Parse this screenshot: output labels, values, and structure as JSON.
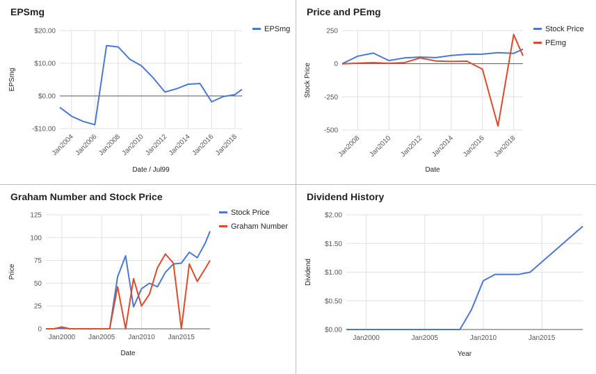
{
  "panels": [
    {
      "title": "EPSmg"
    },
    {
      "title": "Price and PEmg"
    },
    {
      "title": "Graham Number and Stock Price"
    },
    {
      "title": "Dividend History"
    }
  ],
  "colors": {
    "blue": "#4a78d0",
    "red": "#db4a2b"
  },
  "chart_data": [
    {
      "type": "line",
      "title": "EPSmg",
      "xlabel": "Date / Jul99",
      "ylabel": "EPSmg",
      "ylim": [
        -10,
        20
      ],
      "xlim": [
        2003,
        2018.6
      ],
      "yticks": [
        20,
        10,
        0,
        -10
      ],
      "ytick_labels": [
        "$20.00",
        "$10.00",
        "$0.00",
        "-$10.00"
      ],
      "xticks": [
        2004,
        2006,
        2008,
        2010,
        2012,
        2014,
        2016,
        2018
      ],
      "xtick_labels": [
        "Jan2004",
        "Jan2006",
        "Jan2008",
        "Jan2010",
        "Jan2012",
        "Jan2014",
        "Jan2016",
        "Jan2018"
      ],
      "legend_position": "top-right",
      "series": [
        {
          "name": "EPSmg",
          "color": "#4a78d0",
          "x": [
            2003,
            2004,
            2005,
            2006,
            2007,
            2008,
            2009,
            2010,
            2011,
            2012,
            2013,
            2014,
            2015,
            2016,
            2017,
            2018,
            2018.6
          ],
          "y": [
            -3.5,
            -6.2,
            -7.8,
            -8.8,
            15.4,
            15.0,
            11.2,
            9.2,
            5.5,
            1.2,
            2.2,
            3.6,
            3.8,
            -1.8,
            -0.2,
            0.4,
            2.0
          ]
        }
      ]
    },
    {
      "type": "line",
      "title": "Price and PEmg",
      "xlabel": "Date",
      "ylabel": "Stock Price",
      "ylim": [
        -500,
        250
      ],
      "xlim": [
        2007,
        2018.6
      ],
      "yticks": [
        250,
        0,
        -250,
        -500
      ],
      "ytick_labels": [
        "250",
        "0",
        "-250",
        "-500"
      ],
      "xticks": [
        2008,
        2010,
        2012,
        2014,
        2016,
        2018
      ],
      "xtick_labels": [
        "Jan2008",
        "Jan2010",
        "Jan2012",
        "Jan2014",
        "Jan2016",
        "Jan2018"
      ],
      "legend_position": "top-right",
      "series": [
        {
          "name": "Stock Price",
          "color": "#4a78d0",
          "x": [
            2007,
            2008,
            2009,
            2010,
            2011,
            2012,
            2013,
            2014,
            2015,
            2016,
            2017,
            2018,
            2018.6
          ],
          "y": [
            0,
            57,
            80,
            24,
            44,
            50,
            46,
            62,
            71,
            72,
            84,
            78,
            110
          ]
        },
        {
          "name": "PEmg",
          "color": "#db4a2b",
          "x": [
            2007,
            2008,
            2009,
            2010,
            2011,
            2012,
            2013,
            2014,
            2015,
            2016,
            2017,
            2018,
            2018.6
          ],
          "y": [
            0,
            4,
            8,
            3,
            8,
            44,
            21,
            17,
            19,
            -41,
            -470,
            220,
            60
          ]
        }
      ]
    },
    {
      "type": "line",
      "title": "Graham Number and Stock Price",
      "xlabel": "Date",
      "ylabel": "Price",
      "ylim": [
        0,
        125
      ],
      "xlim": [
        1998,
        2018.6
      ],
      "yticks": [
        125,
        100,
        75,
        50,
        25,
        0
      ],
      "ytick_labels": [
        "125",
        "100",
        "75",
        "50",
        "25",
        "0"
      ],
      "xticks": [
        2000,
        2005,
        2010,
        2015
      ],
      "xtick_labels": [
        "Jan2000",
        "Jan2005",
        "Jan2010",
        "Jan2015"
      ],
      "legend_position": "top-right",
      "series": [
        {
          "name": "Stock Price",
          "color": "#4a78d0",
          "x": [
            1998,
            1999,
            2000,
            2001,
            2002,
            2003,
            2004,
            2005,
            2006,
            2007,
            2008,
            2009,
            2010,
            2011,
            2012,
            2013,
            2014,
            2015,
            2016,
            2017,
            2018,
            2018.6
          ],
          "y": [
            0,
            0,
            1,
            0,
            0,
            0,
            0,
            0,
            0,
            57,
            80,
            24,
            44,
            50,
            46,
            62,
            71,
            72,
            84,
            78,
            94,
            107
          ]
        },
        {
          "name": "Graham Number",
          "color": "#db4a2b",
          "x": [
            1998,
            1999,
            2000,
            2001,
            2002,
            2003,
            2004,
            2005,
            2006,
            2007,
            2008,
            2009,
            2010,
            2011,
            2012,
            2013,
            2014,
            2015,
            2016,
            2017,
            2018,
            2018.6
          ],
          "y": [
            0,
            0,
            2,
            0,
            0,
            0,
            0,
            0,
            0,
            46,
            0,
            55,
            25,
            38,
            67,
            82,
            72,
            0,
            71,
            52,
            66,
            75
          ]
        }
      ]
    },
    {
      "type": "line",
      "title": "Dividend History",
      "xlabel": "Year",
      "ylabel": "Dividend",
      "ylim": [
        0,
        2
      ],
      "xlim": [
        1998.3,
        2018.5
      ],
      "yticks": [
        2.0,
        1.5,
        1.0,
        0.5,
        0.0
      ],
      "ytick_labels": [
        "$2.00",
        "$1.50",
        "$1.00",
        "$0.50",
        "$0.00"
      ],
      "xticks": [
        2000,
        2005,
        2010,
        2015
      ],
      "xtick_labels": [
        "Jan2000",
        "Jan2005",
        "Jan2010",
        "Jan2015"
      ],
      "legend_position": "none",
      "series": [
        {
          "color": "#4a78d0",
          "x": [
            1998.3,
            2008,
            2009,
            2010,
            2011,
            2012,
            2013,
            2014,
            2018.5
          ],
          "y": [
            0,
            0,
            0.35,
            0.85,
            0.96,
            0.96,
            0.96,
            1.0,
            1.8
          ]
        }
      ]
    }
  ]
}
